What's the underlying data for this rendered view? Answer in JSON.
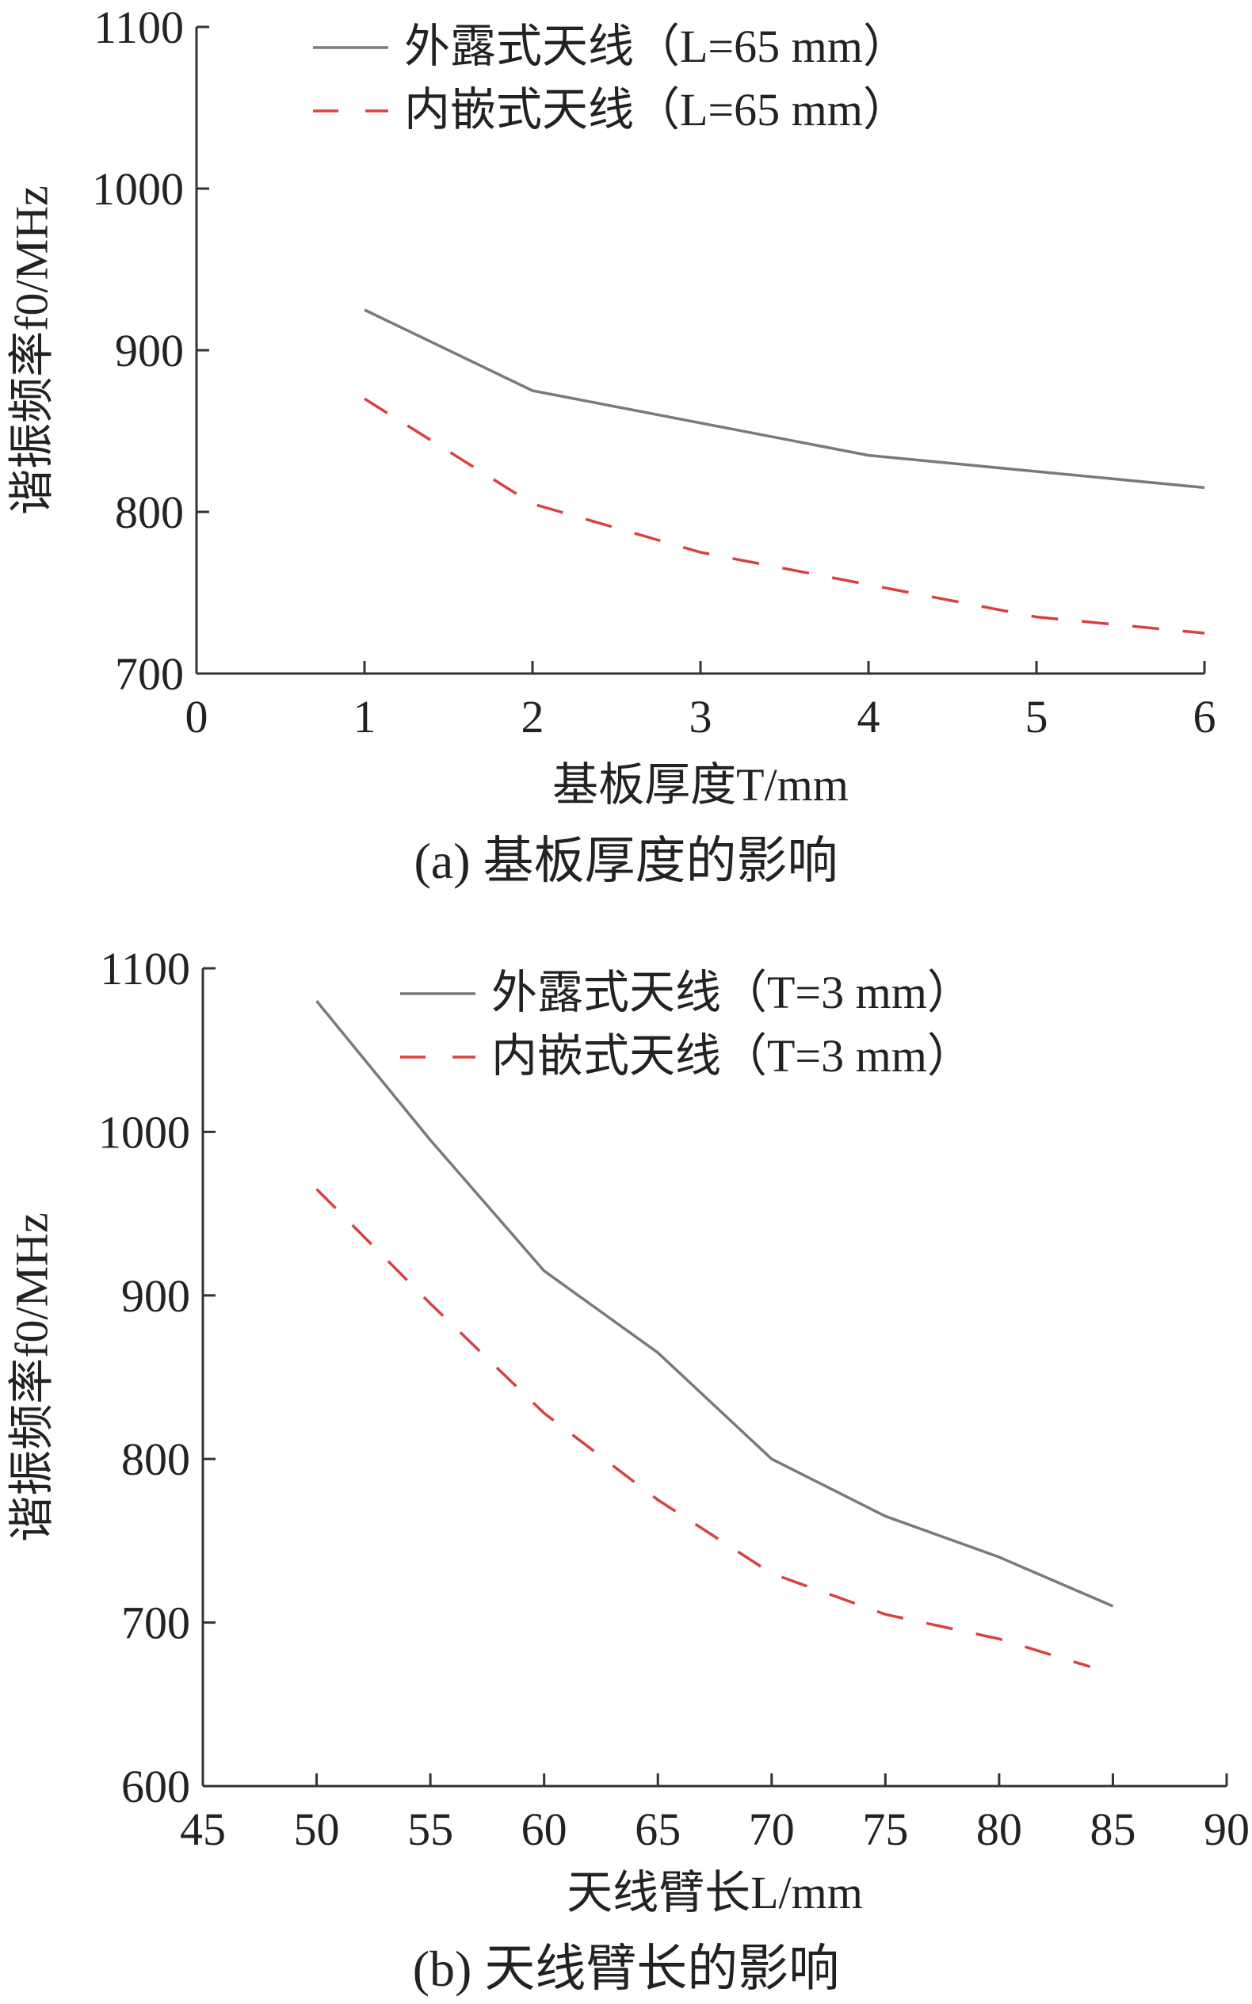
{
  "chart_data": [
    {
      "type": "line",
      "caption": "(a)  基板厚度的影响",
      "xlabel": "基板厚度T/mm",
      "ylabel": "谐振频率f0/MHz",
      "xlim": [
        0,
        6
      ],
      "ylim": [
        700,
        1100
      ],
      "xticks": [
        "0",
        "1",
        "2",
        "3",
        "4",
        "5",
        "6"
      ],
      "yticks": [
        "700",
        "800",
        "900",
        "1000",
        "1100"
      ],
      "legend_position": "top-left",
      "series": [
        {
          "name": "外露式天线（L=65 mm）",
          "style": "solid",
          "color": "#7a7a7a",
          "x": [
            1,
            2,
            3,
            4,
            5,
            6
          ],
          "y": [
            925,
            875,
            855,
            835,
            825,
            815
          ]
        },
        {
          "name": "内嵌式天线（L=65 mm）",
          "style": "dashed",
          "color": "#d9413f",
          "x": [
            1,
            2,
            3,
            4,
            5,
            6
          ],
          "y": [
            870,
            805,
            775,
            755,
            735,
            725
          ]
        }
      ]
    },
    {
      "type": "line",
      "caption": "(b)  天线臂长的影响",
      "xlabel": "天线臂长L/mm",
      "ylabel": "谐振频率f0/MHz",
      "xlim": [
        45,
        90
      ],
      "ylim": [
        600,
        1100
      ],
      "xticks": [
        "45",
        "50",
        "55",
        "60",
        "65",
        "70",
        "75",
        "80",
        "85",
        "90"
      ],
      "yticks": [
        "600",
        "700",
        "800",
        "900",
        "1000",
        "1100"
      ],
      "legend_position": "top-right",
      "series": [
        {
          "name": "外露式天线（T=3 mm）",
          "style": "solid",
          "color": "#7a7a7a",
          "x": [
            50,
            55,
            60,
            65,
            70,
            75,
            80,
            85
          ],
          "y": [
            1080,
            995,
            915,
            865,
            800,
            765,
            740,
            710
          ]
        },
        {
          "name": "内嵌式天线（T=3 mm）",
          "style": "dashed",
          "color": "#d9413f",
          "x": [
            50,
            55,
            60,
            65,
            70,
            75,
            80,
            84
          ],
          "y": [
            965,
            895,
            828,
            775,
            730,
            705,
            690,
            673
          ]
        }
      ]
    }
  ]
}
